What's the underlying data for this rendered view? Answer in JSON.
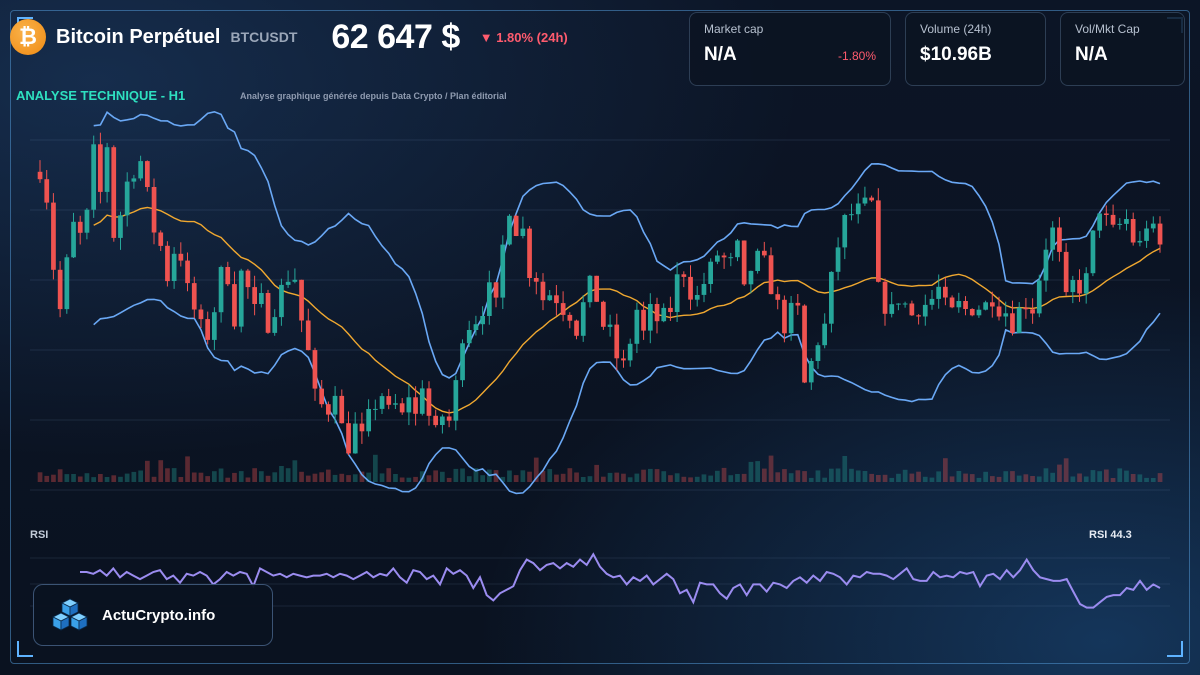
{
  "header": {
    "coin_symbol": "₿",
    "title": "Bitcoin Perpétuel",
    "ticker": "BTCUSDT",
    "price": "62 647 $",
    "change": "▼ 1.80% (24h)"
  },
  "stats": [
    {
      "label": "Market cap",
      "value": "N/A",
      "delta": "-1.80%"
    },
    {
      "label": "Volume (24h)",
      "value": "$10.96B",
      "delta": ""
    },
    {
      "label": "Vol/Mkt Cap",
      "value": "N/A",
      "delta": ""
    }
  ],
  "section": {
    "title": "ANALYSE TECHNIQUE - H1",
    "subtitle": "Analyse graphique générée depuis Data Crypto / Plan éditorial"
  },
  "rsi": {
    "label": "RSI",
    "value_label": "RSI 44.3"
  },
  "brand": {
    "name": "ActuCrypto.info"
  },
  "colors": {
    "up": "#26a69a",
    "down": "#ef5350",
    "bollinger": "#6aa8f5",
    "moving_average": "#f0a830",
    "rsi_line": "#9b8cf0",
    "accent": "#2ee0c0",
    "negative": "#ff5b6e"
  },
  "chart_data": {
    "type": "candlestick",
    "timeframe": "H1",
    "indicators": [
      "Bollinger Bands",
      "Moving Average",
      "Volume",
      "RSI"
    ],
    "anchor_prices": [
      430,
      405,
      340,
      300,
      345,
      380,
      370,
      390,
      450,
      410,
      455,
      370,
      390,
      420,
      430,
      440,
      410,
      375,
      360,
      330,
      355,
      350,
      320,
      300,
      285,
      275,
      300,
      335,
      330,
      290,
      335,
      320,
      300,
      310,
      285,
      300,
      320,
      330,
      330,
      290,
      260,
      220,
      210,
      205,
      225,
      190,
      170,
      190,
      180,
      200,
      210,
      220,
      205,
      210,
      200,
      220,
      200,
      230,
      200,
      185,
      200,
      195,
      230,
      275,
      285,
      290,
      300,
      320,
      305,
      360,
      395,
      375,
      375,
      335,
      330,
      310,
      315,
      310,
      300,
      295,
      280,
      305,
      325,
      310,
      285,
      280,
      255,
      248,
      270,
      300,
      278,
      300,
      290,
      295,
      300,
      330,
      335,
      315,
      312,
      325,
      340,
      352,
      348,
      345,
      360,
      318,
      338,
      350,
      345,
      320,
      305,
      283,
      300,
      300,
      230,
      250,
      270,
      285,
      330,
      360,
      385,
      390,
      395,
      400,
      400,
      320,
      302,
      300,
      310,
      305,
      295,
      300,
      305,
      310,
      320,
      305,
      298,
      305,
      300,
      300,
      302,
      305,
      310,
      300,
      298,
      285,
      300,
      305,
      300,
      330,
      360,
      375,
      350,
      310,
      325,
      320,
      330,
      370,
      395,
      385,
      375,
      380,
      385,
      365,
      362,
      380,
      375,
      360
    ],
    "close_last": 62647,
    "rsi_last": 44.3,
    "rsi_series": [
      47,
      47,
      46,
      48,
      45,
      49,
      44,
      47,
      45,
      43,
      45,
      47,
      48,
      43,
      45,
      41,
      46,
      45,
      47,
      45,
      40,
      43,
      47,
      45,
      47,
      46,
      39,
      49,
      47,
      45,
      46,
      44,
      46,
      45,
      44,
      45,
      45,
      46,
      44,
      46,
      45,
      43,
      45,
      47,
      44,
      46,
      45,
      49,
      44,
      41,
      48,
      47,
      43,
      45,
      40,
      49,
      46,
      48,
      45,
      38,
      44,
      34,
      31,
      35,
      37,
      39,
      48,
      54,
      52,
      48,
      51,
      52,
      49,
      52,
      50,
      54,
      51,
      57,
      50,
      46,
      44,
      45,
      40,
      44,
      42,
      45,
      40,
      43,
      46,
      43,
      35,
      37,
      30,
      41,
      40,
      40,
      35,
      32,
      38,
      40,
      34,
      40,
      40,
      36,
      41,
      40,
      38,
      42,
      44,
      41,
      45,
      42,
      47,
      46,
      44,
      40,
      45,
      44,
      47,
      46,
      46,
      45,
      43,
      46,
      49,
      43,
      42,
      42,
      47,
      44,
      45,
      44,
      47,
      46,
      47,
      39,
      45,
      46,
      43,
      48,
      44,
      48,
      54,
      48,
      44,
      43,
      42,
      42,
      43,
      36,
      29,
      27,
      27,
      30,
      33,
      34,
      34,
      38,
      37,
      42,
      37,
      40,
      38
    ],
    "rsi_ylim": [
      0,
      100
    ]
  }
}
